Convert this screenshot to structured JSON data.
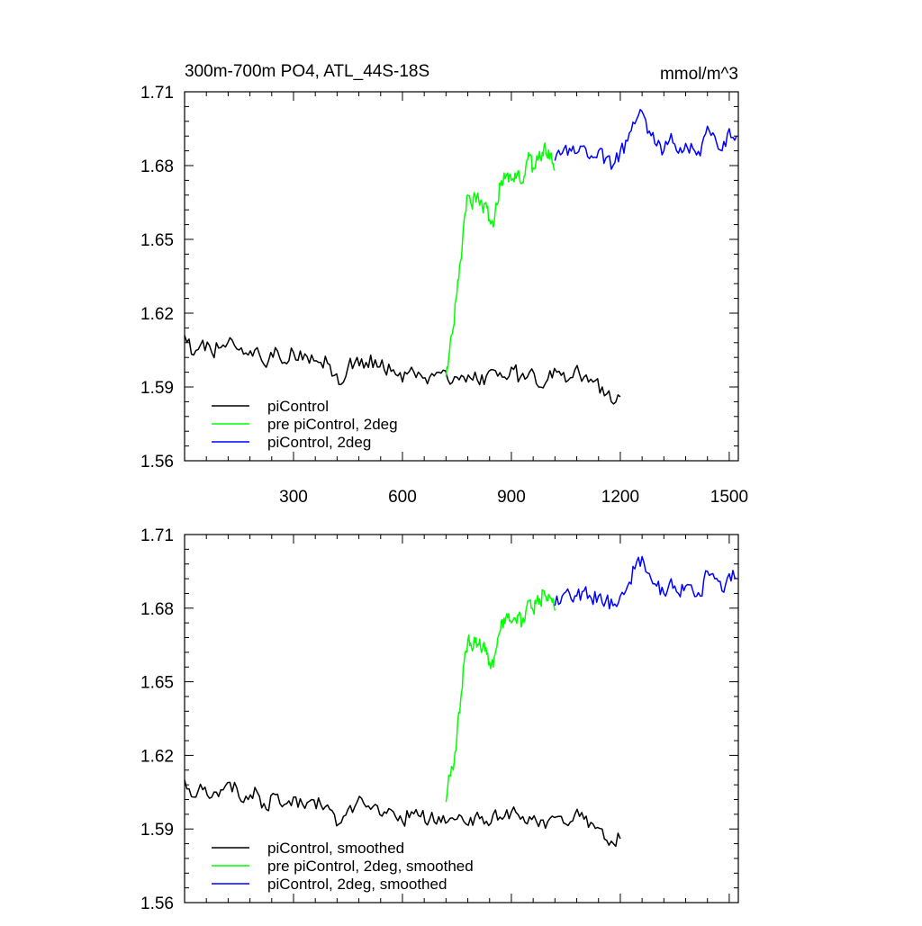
{
  "chart_data": [
    {
      "type": "line",
      "title": "300m-700m PO4, ATL_44S-18S",
      "units": "mmol/m^3",
      "xlim": [
        0,
        1525
      ],
      "ylim": [
        1.56,
        1.71
      ],
      "x_ticks": [
        300,
        600,
        900,
        1200,
        1500
      ],
      "x_tick_labels": [
        "300",
        "600",
        "900",
        "1200",
        "1500"
      ],
      "y_ticks": [
        1.56,
        1.59,
        1.62,
        1.65,
        1.68,
        1.71
      ],
      "y_tick_labels": [
        "1.56",
        "1.59",
        "1.62",
        "1.65",
        "1.68",
        "1.71"
      ],
      "legend_position": "bottom-left",
      "grid": false,
      "series": [
        {
          "name": "piControl",
          "color": "#000000",
          "x": [
            0,
            25,
            50,
            75,
            100,
            125,
            150,
            175,
            200,
            225,
            250,
            275,
            300,
            325,
            350,
            375,
            400,
            425,
            450,
            475,
            500,
            525,
            550,
            575,
            600,
            625,
            650,
            675,
            700,
            725,
            750,
            775,
            800,
            825,
            850,
            875,
            900,
            925,
            950,
            975,
            1000,
            1025,
            1050,
            1075,
            1100,
            1125,
            1150,
            1175,
            1200
          ],
          "values": [
            1.611,
            1.603,
            1.609,
            1.604,
            1.606,
            1.61,
            1.605,
            1.603,
            1.606,
            1.598,
            1.606,
            1.6,
            1.604,
            1.601,
            1.603,
            1.6,
            1.599,
            1.591,
            1.598,
            1.602,
            1.6,
            1.601,
            1.597,
            1.597,
            1.592,
            1.598,
            1.595,
            1.594,
            1.596,
            1.593,
            1.594,
            1.592,
            1.596,
            1.591,
            1.597,
            1.594,
            1.598,
            1.594,
            1.596,
            1.59,
            1.593,
            1.596,
            1.592,
            1.597,
            1.594,
            1.592,
            1.59,
            1.584,
            1.586
          ]
        },
        {
          "name": "pre piControl, 2deg",
          "color": "#00ff00",
          "x": [
            720,
            730,
            740,
            750,
            760,
            770,
            780,
            790,
            800,
            810,
            820,
            830,
            840,
            850,
            860,
            870,
            880,
            890,
            900,
            910,
            920,
            930,
            940,
            950,
            960,
            970,
            980,
            990,
            1000,
            1010,
            1020
          ],
          "values": [
            1.594,
            1.605,
            1.614,
            1.628,
            1.641,
            1.658,
            1.668,
            1.664,
            1.668,
            1.666,
            1.663,
            1.665,
            1.658,
            1.655,
            1.664,
            1.672,
            1.677,
            1.677,
            1.674,
            1.677,
            1.678,
            1.673,
            1.68,
            1.684,
            1.679,
            1.684,
            1.683,
            1.688,
            1.683,
            1.685,
            1.678
          ]
        },
        {
          "name": "piControl, 2deg",
          "color": "#0000ff",
          "x": [
            1020,
            1040,
            1060,
            1080,
            1100,
            1120,
            1140,
            1160,
            1180,
            1200,
            1220,
            1240,
            1260,
            1280,
            1300,
            1320,
            1340,
            1360,
            1380,
            1400,
            1420,
            1440,
            1460,
            1480,
            1500,
            1520
          ],
          "values": [
            1.682,
            1.685,
            1.687,
            1.685,
            1.688,
            1.684,
            1.686,
            1.683,
            1.68,
            1.686,
            1.69,
            1.697,
            1.702,
            1.694,
            1.688,
            1.686,
            1.693,
            1.685,
            1.689,
            1.687,
            1.684,
            1.696,
            1.692,
            1.686,
            1.695,
            1.692
          ]
        }
      ]
    },
    {
      "type": "line",
      "xlim": [
        0,
        1525
      ],
      "ylim": [
        1.56,
        1.71
      ],
      "x_ticks": [
        300,
        600,
        900,
        1200,
        1500
      ],
      "y_ticks": [
        1.56,
        1.59,
        1.62,
        1.65,
        1.68,
        1.71
      ],
      "y_tick_labels": [
        "1.56",
        "1.59",
        "1.62",
        "1.65",
        "1.68",
        "1.71"
      ],
      "legend_position": "bottom-left",
      "grid": false,
      "series": [
        {
          "name": "piControl, smoothed",
          "color": "#000000",
          "x": [
            0,
            25,
            50,
            75,
            100,
            125,
            150,
            175,
            200,
            225,
            250,
            275,
            300,
            325,
            350,
            375,
            400,
            425,
            450,
            475,
            500,
            525,
            550,
            575,
            600,
            625,
            650,
            675,
            700,
            725,
            750,
            775,
            800,
            825,
            850,
            875,
            900,
            925,
            950,
            975,
            1000,
            1025,
            1050,
            1075,
            1100,
            1125,
            1150,
            1175,
            1200
          ],
          "values": [
            1.61,
            1.603,
            1.606,
            1.603,
            1.606,
            1.609,
            1.603,
            1.602,
            1.605,
            1.598,
            1.604,
            1.6,
            1.603,
            1.6,
            1.602,
            1.6,
            1.598,
            1.592,
            1.598,
            1.601,
            1.599,
            1.6,
            1.597,
            1.597,
            1.593,
            1.597,
            1.595,
            1.594,
            1.595,
            1.593,
            1.594,
            1.592,
            1.595,
            1.592,
            1.596,
            1.594,
            1.597,
            1.594,
            1.595,
            1.591,
            1.593,
            1.595,
            1.592,
            1.596,
            1.594,
            1.592,
            1.59,
            1.585,
            1.586
          ]
        },
        {
          "name": "pre piControl, 2deg, smoothed",
          "color": "#00ff00",
          "x": [
            720,
            730,
            740,
            750,
            760,
            770,
            780,
            790,
            800,
            810,
            820,
            830,
            840,
            850,
            860,
            870,
            880,
            890,
            900,
            910,
            920,
            930,
            940,
            950,
            960,
            970,
            980,
            990,
            1000,
            1010,
            1020
          ],
          "values": [
            1.601,
            1.612,
            1.614,
            1.628,
            1.642,
            1.658,
            1.667,
            1.664,
            1.666,
            1.665,
            1.663,
            1.664,
            1.658,
            1.656,
            1.664,
            1.671,
            1.676,
            1.676,
            1.674,
            1.676,
            1.677,
            1.674,
            1.679,
            1.683,
            1.679,
            1.683,
            1.682,
            1.687,
            1.683,
            1.684,
            1.679
          ]
        },
        {
          "name": "piControl, 2deg, smoothed",
          "color": "#0000ff",
          "x": [
            1020,
            1040,
            1060,
            1080,
            1100,
            1120,
            1140,
            1160,
            1180,
            1200,
            1220,
            1240,
            1260,
            1280,
            1300,
            1320,
            1340,
            1360,
            1380,
            1400,
            1420,
            1440,
            1460,
            1480,
            1500,
            1520
          ],
          "values": [
            1.681,
            1.685,
            1.686,
            1.685,
            1.687,
            1.684,
            1.685,
            1.683,
            1.681,
            1.685,
            1.689,
            1.696,
            1.701,
            1.694,
            1.689,
            1.686,
            1.692,
            1.686,
            1.689,
            1.687,
            1.685,
            1.695,
            1.692,
            1.687,
            1.694,
            1.692
          ]
        }
      ]
    }
  ]
}
